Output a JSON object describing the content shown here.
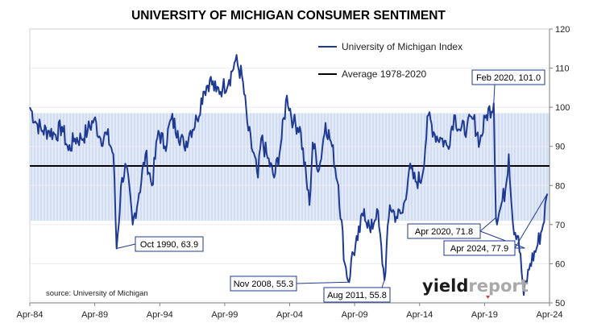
{
  "chart_data": {
    "type": "line",
    "title": "UNIVERSITY OF MICHIGAN CONSUMER SENTIMENT",
    "xlabel": "",
    "ylabel": "",
    "x_tick_labels": [
      "Apr-84",
      "Apr-89",
      "Apr-94",
      "Apr-99",
      "Apr-04",
      "Apr-09",
      "Apr-14",
      "Apr-19",
      "Apr-24"
    ],
    "ylim": [
      50,
      120
    ],
    "y_ticks": [
      50,
      60,
      70,
      80,
      90,
      100,
      110,
      120
    ],
    "y_axis_side": "right",
    "shaded_band": [
      71,
      98.5
    ],
    "legend": {
      "position": "top-right",
      "entries": [
        {
          "label": "University of Michigan Index",
          "color": "#1f3a93"
        },
        {
          "label": "Average 1978-2020",
          "color": "#000000"
        }
      ]
    },
    "series": [
      {
        "name": "University of Michigan Index",
        "color": "#1f3a93",
        "x": [
          "1984-01",
          "1984-07",
          "1985-01",
          "1985-07",
          "1986-01",
          "1986-07",
          "1987-01",
          "1987-07",
          "1988-01",
          "1988-07",
          "1989-01",
          "1989-07",
          "1990-01",
          "1990-07",
          "1990-10",
          "1991-03",
          "1991-07",
          "1992-01",
          "1992-07",
          "1993-01",
          "1993-07",
          "1994-01",
          "1994-07",
          "1995-01",
          "1995-07",
          "1996-01",
          "1996-07",
          "1997-01",
          "1997-07",
          "1998-01",
          "1998-07",
          "1999-01",
          "1999-07",
          "2000-01",
          "2000-07",
          "2001-01",
          "2001-10",
          "2002-01",
          "2002-07",
          "2003-01",
          "2003-07",
          "2004-01",
          "2004-07",
          "2005-01",
          "2005-10",
          "2006-01",
          "2006-07",
          "2007-01",
          "2007-07",
          "2008-01",
          "2008-07",
          "2008-11",
          "2009-01",
          "2009-07",
          "2010-01",
          "2010-07",
          "2011-01",
          "2011-08",
          "2012-01",
          "2012-07",
          "2013-01",
          "2013-07",
          "2014-01",
          "2014-07",
          "2015-01",
          "2015-07",
          "2016-01",
          "2016-07",
          "2017-01",
          "2017-07",
          "2018-01",
          "2018-07",
          "2019-01",
          "2019-07",
          "2020-02",
          "2020-04",
          "2020-07",
          "2021-01",
          "2021-04",
          "2021-08",
          "2022-01",
          "2022-06",
          "2022-12",
          "2023-06",
          "2023-12",
          "2024-04"
        ],
        "values": [
          100,
          96,
          94,
          94,
          93,
          95,
          89,
          92,
          92,
          94,
          97,
          92,
          93,
          88,
          63.9,
          82,
          85,
          70,
          78,
          88,
          80,
          94,
          90,
          97,
          94,
          90,
          94,
          97,
          104,
          107,
          104,
          105,
          107,
          112,
          108,
          94,
          82,
          92,
          87,
          82,
          90,
          103,
          96,
          95,
          75,
          91,
          84,
          96,
          90,
          80,
          60,
          55.3,
          61,
          66,
          74,
          68,
          74,
          55.8,
          75,
          72,
          73,
          84,
          81,
          82,
          98,
          93,
          92,
          90,
          98,
          94,
          95,
          97,
          91,
          98,
          101.0,
          71.8,
          73,
          79,
          88,
          70,
          67,
          52,
          60,
          64,
          70,
          77.9
        ]
      },
      {
        "name": "Average 1978-2020",
        "color": "#000000",
        "x": [
          "1984-01",
          "2024-05"
        ],
        "values": [
          85,
          85
        ]
      }
    ],
    "annotations": [
      {
        "label": "Oct 1990, 63.9",
        "x": "1990-10",
        "y": 63.9
      },
      {
        "label": "Nov 2008, 55.3",
        "x": "2008-11",
        "y": 55.3
      },
      {
        "label": "Aug 2011, 55.8",
        "x": "2011-08",
        "y": 55.8
      },
      {
        "label": "Feb 2020, 101.0",
        "x": "2020-02",
        "y": 101.0
      },
      {
        "label": "Apr 2020, 71.8",
        "x": "2020-04",
        "y": 71.8
      },
      {
        "label": "Apr 2024, 77.9",
        "x": "2024-04",
        "y": 77.9
      }
    ]
  },
  "source": "source: University of Michigan",
  "logo": {
    "part1": "yield",
    "part2": "report"
  }
}
